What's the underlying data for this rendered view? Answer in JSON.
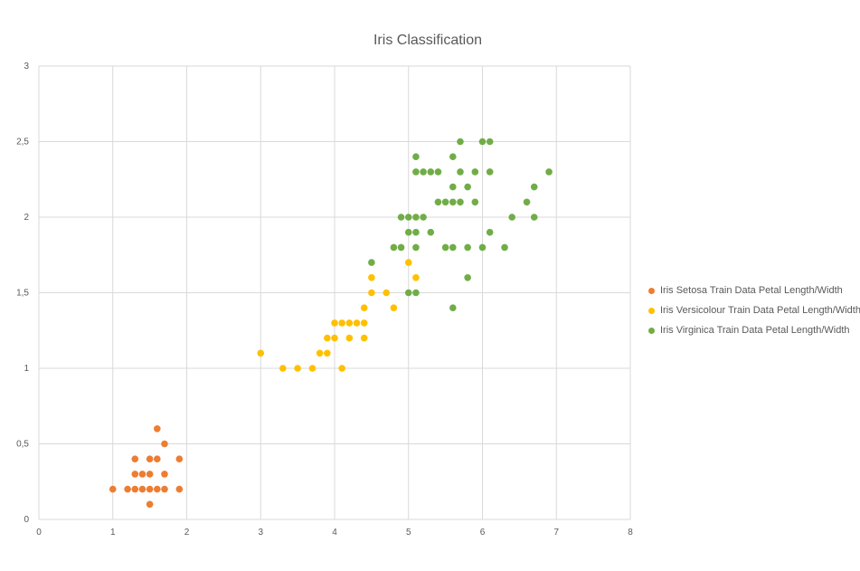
{
  "chart_data": {
    "type": "scatter",
    "title": "Iris Classification",
    "xlabel": "",
    "ylabel": "",
    "xlim": [
      0,
      8
    ],
    "ylim": [
      0,
      3
    ],
    "x_ticks": [
      0,
      1,
      2,
      3,
      4,
      5,
      6,
      7,
      8
    ],
    "y_ticks": [
      0,
      0.5,
      1,
      1.5,
      2,
      2.5,
      3
    ],
    "x_tick_labels": [
      "0",
      "1",
      "2",
      "3",
      "4",
      "5",
      "6",
      "7",
      "8"
    ],
    "y_tick_labels": [
      "0",
      "0,5",
      "1",
      "1,5",
      "2",
      "2,5",
      "3"
    ],
    "grid": true,
    "legend_position": "right",
    "series": [
      {
        "name": "Iris Setosa Train Data Petal Length/Width",
        "color": "#ED7D31",
        "points": [
          [
            1.0,
            0.2
          ],
          [
            1.2,
            0.2
          ],
          [
            1.3,
            0.2
          ],
          [
            1.4,
            0.2
          ],
          [
            1.5,
            0.2
          ],
          [
            1.6,
            0.2
          ],
          [
            1.7,
            0.2
          ],
          [
            1.9,
            0.2
          ],
          [
            1.3,
            0.3
          ],
          [
            1.4,
            0.3
          ],
          [
            1.5,
            0.3
          ],
          [
            1.7,
            0.3
          ],
          [
            1.3,
            0.4
          ],
          [
            1.5,
            0.4
          ],
          [
            1.6,
            0.4
          ],
          [
            1.9,
            0.4
          ],
          [
            1.7,
            0.5
          ],
          [
            1.6,
            0.6
          ],
          [
            1.5,
            0.1
          ]
        ]
      },
      {
        "name": "Iris Versicolour Train Data Petal Length/Width",
        "color": "#FFC000",
        "points": [
          [
            3.0,
            1.1
          ],
          [
            3.3,
            1.0
          ],
          [
            3.5,
            1.0
          ],
          [
            3.7,
            1.0
          ],
          [
            4.1,
            1.0
          ],
          [
            3.8,
            1.1
          ],
          [
            3.9,
            1.1
          ],
          [
            3.9,
            1.2
          ],
          [
            4.0,
            1.2
          ],
          [
            4.2,
            1.2
          ],
          [
            4.4,
            1.2
          ],
          [
            4.0,
            1.3
          ],
          [
            4.1,
            1.3
          ],
          [
            4.2,
            1.3
          ],
          [
            4.3,
            1.3
          ],
          [
            4.4,
            1.3
          ],
          [
            4.4,
            1.4
          ],
          [
            4.8,
            1.4
          ],
          [
            4.5,
            1.5
          ],
          [
            4.7,
            1.5
          ],
          [
            5.1,
            1.6
          ],
          [
            4.5,
            1.6
          ],
          [
            5.0,
            1.7
          ]
        ]
      },
      {
        "name": "Iris Virginica Train Data Petal Length/Width",
        "color": "#70AD47",
        "points": [
          [
            5.6,
            1.4
          ],
          [
            5.0,
            1.5
          ],
          [
            5.1,
            1.5
          ],
          [
            5.8,
            1.6
          ],
          [
            4.5,
            1.7
          ],
          [
            4.8,
            1.8
          ],
          [
            4.9,
            1.8
          ],
          [
            5.1,
            1.8
          ],
          [
            5.5,
            1.8
          ],
          [
            5.6,
            1.8
          ],
          [
            5.8,
            1.8
          ],
          [
            6.0,
            1.8
          ],
          [
            6.3,
            1.8
          ],
          [
            5.0,
            1.9
          ],
          [
            5.1,
            1.9
          ],
          [
            5.3,
            1.9
          ],
          [
            6.1,
            1.9
          ],
          [
            4.9,
            2.0
          ],
          [
            5.0,
            2.0
          ],
          [
            5.1,
            2.0
          ],
          [
            5.2,
            2.0
          ],
          [
            6.4,
            2.0
          ],
          [
            6.7,
            2.0
          ],
          [
            5.4,
            2.1
          ],
          [
            5.5,
            2.1
          ],
          [
            5.6,
            2.1
          ],
          [
            5.7,
            2.1
          ],
          [
            5.9,
            2.1
          ],
          [
            6.6,
            2.1
          ],
          [
            5.6,
            2.2
          ],
          [
            5.8,
            2.2
          ],
          [
            6.7,
            2.2
          ],
          [
            5.1,
            2.3
          ],
          [
            5.2,
            2.3
          ],
          [
            5.3,
            2.3
          ],
          [
            5.4,
            2.3
          ],
          [
            5.7,
            2.3
          ],
          [
            5.9,
            2.3
          ],
          [
            6.1,
            2.3
          ],
          [
            6.9,
            2.3
          ],
          [
            5.1,
            2.4
          ],
          [
            5.6,
            2.4
          ],
          [
            5.7,
            2.5
          ],
          [
            6.0,
            2.5
          ],
          [
            6.1,
            2.5
          ]
        ]
      }
    ]
  }
}
